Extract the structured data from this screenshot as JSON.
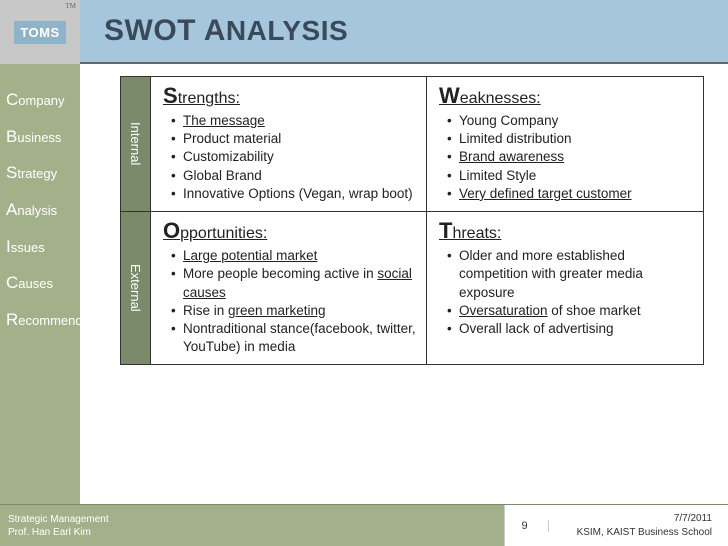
{
  "header": {
    "logo_text": "TOMS",
    "logo_tm": "TM",
    "title_big": "SWOT A",
    "title_rest": "NALYSIS"
  },
  "sidebar": {
    "items": [
      {
        "first": "C",
        "rest": "ompany"
      },
      {
        "first": "B",
        "rest": "usiness"
      },
      {
        "first": "S",
        "rest": "trategy"
      },
      {
        "first": "A",
        "rest": "nalysis"
      },
      {
        "first": "I",
        "rest": "ssues"
      },
      {
        "first": "C",
        "rest": "auses"
      },
      {
        "first": "R",
        "rest": "ecommend."
      }
    ]
  },
  "swot": {
    "axis_internal": "Internal",
    "axis_external": "External",
    "strengths": {
      "big": "S",
      "rest": "trengths:",
      "items": [
        "<span class='u'>The message</span>",
        "Product material",
        "Customizability",
        "Global Brand",
        "Innovative Options (Vegan, wrap boot)"
      ]
    },
    "weaknesses": {
      "big": "W",
      "rest": "eaknesses:",
      "items": [
        "Young Company",
        "Limited distribution",
        "<span class='u'>Brand awareness</span>",
        "Limited Style",
        "<span class='u'>Very defined target customer</span>"
      ]
    },
    "opportunities": {
      "big": "O",
      "rest": "pportunities:",
      "items": [
        "<span class='u'>Large potential market</span>",
        "More people becoming active in <span class='u'>social causes</span>",
        "Rise in <span class='u'>green marketing</span>",
        "Nontraditional stance(facebook, twitter, YouTube)  in media"
      ]
    },
    "threats": {
      "big": "T",
      "rest": "hreats:",
      "items": [
        "Older and more established competition  with greater media exposure",
        "<span class='u'>Oversaturation</span> of shoe market",
        "Overall lack of advertising"
      ]
    }
  },
  "footer": {
    "left_line1": "Strategic Management",
    "left_line2": "Prof. Han Earl Kim",
    "page_number": "9",
    "date": "7/7/2011",
    "school": "KSIM, KAIST Business School"
  },
  "colors": {
    "header_bg": "#a5c6dd",
    "sidebar_bg": "#a3b18a",
    "axis_bg": "#7a8a6a",
    "logo_bg": "#8fb4c9"
  }
}
